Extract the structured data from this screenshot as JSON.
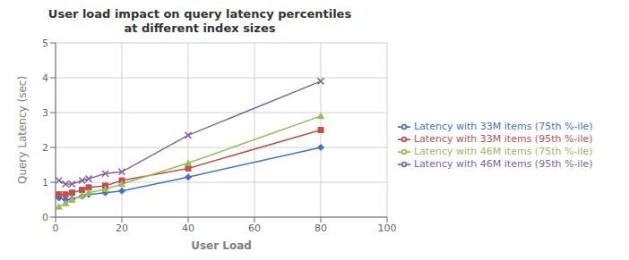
{
  "chart_data": {
    "type": "line",
    "title": "User load impact on query latency percentiles\nat different index sizes",
    "x_label": "User Load",
    "y_label": "Query Latency (sec)",
    "x": [
      1,
      3,
      5,
      8,
      10,
      15,
      20,
      40,
      80
    ],
    "series": [
      {
        "name": "Latency with 33M items (75th %-ile)",
        "color": "#4472C4",
        "marker": "diamond",
        "values": [
          0.55,
          0.5,
          0.52,
          0.6,
          0.65,
          0.7,
          0.75,
          1.15,
          2.0
        ]
      },
      {
        "name": "Latency with 33M items (95th %-ile)",
        "color": "#C0504D",
        "marker": "square",
        "values": [
          0.65,
          0.65,
          0.7,
          0.78,
          0.85,
          0.9,
          1.05,
          1.4,
          2.5
        ]
      },
      {
        "name": "Latency with 46M items (75th %-ile)",
        "color": "#9BBB59",
        "marker": "triangle",
        "values": [
          0.3,
          0.4,
          0.5,
          0.62,
          0.7,
          0.8,
          0.95,
          1.55,
          2.9
        ]
      },
      {
        "name": "Latency with 46M items (95th %-ile)",
        "color": "#8064A2",
        "marker": "x",
        "values": [
          1.05,
          0.95,
          0.95,
          1.05,
          1.1,
          1.25,
          1.3,
          2.35,
          3.9
        ]
      }
    ],
    "xlim": [
      0,
      100
    ],
    "ylim": [
      0,
      5
    ],
    "xticks": [
      0,
      20,
      40,
      60,
      80,
      100
    ],
    "yticks": [
      0,
      1,
      2,
      3,
      4,
      5
    ],
    "grid": true,
    "legend": "right"
  }
}
